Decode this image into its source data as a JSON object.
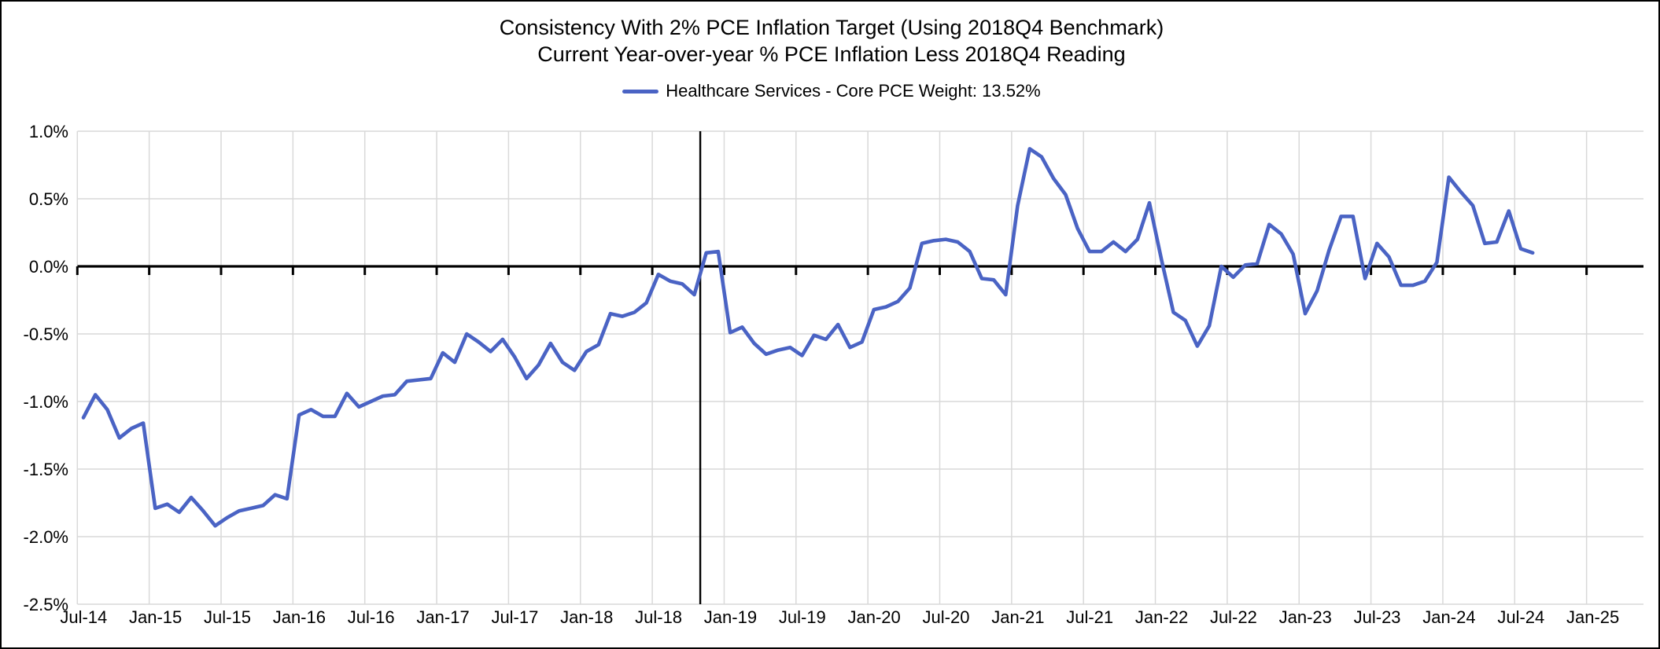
{
  "chart": {
    "title_line1": "Consistency With 2% PCE Inflation Target (Using 2018Q4 Benchmark)",
    "title_line2": "Current Year-over-year % PCE Inflation Less 2018Q4 Reading",
    "legend": {
      "label": "Healthcare Services - Core PCE Weight: 13.52%",
      "color": "#4a63c4"
    }
  },
  "chart_data": {
    "type": "line",
    "title": "Consistency With 2% PCE Inflation Target (Using 2018Q4 Benchmark)",
    "subtitle": "Current Year-over-year % PCE Inflation Less 2018Q4 Reading",
    "legend_entries": [
      "Healthcare Services - Core PCE Weight: 13.52%"
    ],
    "legend_position": "top",
    "grid": true,
    "ylim": [
      -2.5,
      1.0
    ],
    "y_grid_step_pct": 0.5,
    "y_tick_labels": [
      "1.0%",
      "0.5%",
      "0.0%",
      "-0.5%",
      "-1.0%",
      "-1.5%",
      "-2.0%",
      "-2.5%"
    ],
    "x_tick_labels": [
      "Jul-14",
      "Jan-15",
      "Jul-15",
      "Jan-16",
      "Jul-16",
      "Jan-17",
      "Jul-17",
      "Jan-18",
      "Jul-18",
      "Jan-19",
      "Jul-19",
      "Jan-20",
      "Jul-20",
      "Jan-21",
      "Jul-21",
      "Jan-22",
      "Jul-22",
      "Jan-23",
      "Jul-23",
      "Jan-24",
      "Jul-24",
      "Jan-25"
    ],
    "x_start_month": "Jul-14",
    "x_end_month": "Aug-24",
    "frequency": "monthly",
    "zero_axis": true,
    "benchmark_vline_between": [
      "Oct-18",
      "Nov-18"
    ],
    "benchmark_vline_note": "2018Q4 benchmark",
    "series": [
      {
        "name": "Healthcare Services - Core PCE Weight: 13.52%",
        "color": "#4a63c4",
        "unit": "%",
        "values": [
          -1.12,
          -0.95,
          -1.06,
          -1.27,
          -1.2,
          -1.16,
          -1.79,
          -1.76,
          -1.82,
          -1.71,
          -1.81,
          -1.92,
          -1.86,
          -1.81,
          -1.79,
          -1.77,
          -1.69,
          -1.72,
          -1.1,
          -1.06,
          -1.11,
          -1.11,
          -0.94,
          -1.04,
          -1.0,
          -0.96,
          -0.95,
          -0.85,
          -0.84,
          -0.83,
          -0.64,
          -0.71,
          -0.5,
          -0.56,
          -0.63,
          -0.54,
          -0.67,
          -0.83,
          -0.73,
          -0.57,
          -0.71,
          -0.77,
          -0.63,
          -0.58,
          -0.35,
          -0.37,
          -0.34,
          -0.27,
          -0.06,
          -0.11,
          -0.13,
          -0.21,
          0.1,
          0.11,
          -0.49,
          -0.45,
          -0.57,
          -0.65,
          -0.62,
          -0.6,
          -0.66,
          -0.51,
          -0.54,
          -0.43,
          -0.6,
          -0.56,
          -0.32,
          -0.3,
          -0.26,
          -0.16,
          0.17,
          0.19,
          0.2,
          0.18,
          0.11,
          -0.09,
          -0.1,
          -0.21,
          0.45,
          0.87,
          0.81,
          0.65,
          0.53,
          0.28,
          0.11,
          0.11,
          0.18,
          0.11,
          0.2,
          0.47,
          0.05,
          -0.34,
          -0.4,
          -0.59,
          -0.44,
          0.0,
          -0.08,
          0.01,
          0.02,
          0.31,
          0.24,
          0.09,
          -0.35,
          -0.18,
          0.12,
          0.37,
          0.37,
          -0.09,
          0.17,
          0.07,
          -0.14,
          -0.14,
          -0.11,
          0.03,
          0.66,
          0.55,
          0.45,
          0.17,
          0.18,
          0.41,
          0.13,
          0.1
        ]
      }
    ],
    "colors": {
      "series_line": "#4a63c4",
      "gridline": "#d9d9d9",
      "zero_axis": "#000000",
      "benchmark_line": "#000000",
      "text": "#000000"
    }
  }
}
